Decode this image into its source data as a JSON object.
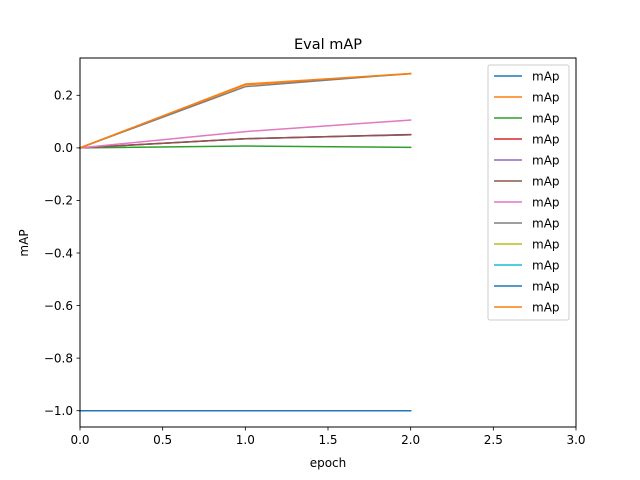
{
  "chart_data": {
    "type": "line",
    "title": "Eval mAP",
    "xlabel": "epoch",
    "ylabel": "mAP",
    "xlim": [
      0.0,
      3.0
    ],
    "ylim": [
      -1.062,
      0.342
    ],
    "xticks": [
      0.0,
      0.5,
      1.0,
      1.5,
      2.0,
      2.5,
      3.0
    ],
    "xtick_labels": [
      "0.0",
      "0.5",
      "1.0",
      "1.5",
      "2.0",
      "2.5",
      "3.0"
    ],
    "yticks": [
      -1.0,
      -0.8,
      -0.6,
      -0.4,
      -0.2,
      0.0,
      0.2
    ],
    "ytick_labels": [
      "−1.0",
      "−0.8",
      "−0.6",
      "−0.4",
      "−0.2",
      "0.0",
      "0.2"
    ],
    "grid": false,
    "legend_position": "top-right",
    "x": [
      0,
      1,
      2
    ],
    "series": [
      {
        "name": "mAp",
        "color": "#1f77b4",
        "values": [
          -1.0,
          -1.0,
          -1.0
        ]
      },
      {
        "name": "mAp",
        "color": "#ff7f0e",
        "values": [
          0.0,
          0.24,
          0.282
        ]
      },
      {
        "name": "mAp",
        "color": "#2ca02c",
        "values": [
          0.0,
          0.007,
          0.002
        ]
      },
      {
        "name": "mAp",
        "color": "#d62728",
        "values": [
          0.0,
          0.035,
          0.05
        ]
      },
      {
        "name": "mAp",
        "color": "#9467bd",
        "values": [
          0.0,
          0.035,
          0.05
        ]
      },
      {
        "name": "mAp",
        "color": "#8c564b",
        "values": [
          0.0,
          0.035,
          0.051
        ]
      },
      {
        "name": "mAp",
        "color": "#e377c2",
        "values": [
          0.0,
          0.062,
          0.106
        ]
      },
      {
        "name": "mAp",
        "color": "#7f7f7f",
        "values": [
          0.0,
          0.233,
          0.283
        ]
      },
      {
        "name": "mAp",
        "color": "#bcbd22",
        "values": [
          -1.0,
          -1.0,
          -1.0
        ]
      },
      {
        "name": "mAp",
        "color": "#17becf",
        "values": [
          -1.0,
          -1.0,
          -1.0
        ]
      },
      {
        "name": "mAp",
        "color": "#1f77b4",
        "values": [
          -1.0,
          -1.0,
          -1.0
        ]
      },
      {
        "name": "mAp",
        "color": "#ff7f0e",
        "values": [
          0.0,
          0.243,
          0.283
        ]
      }
    ]
  }
}
